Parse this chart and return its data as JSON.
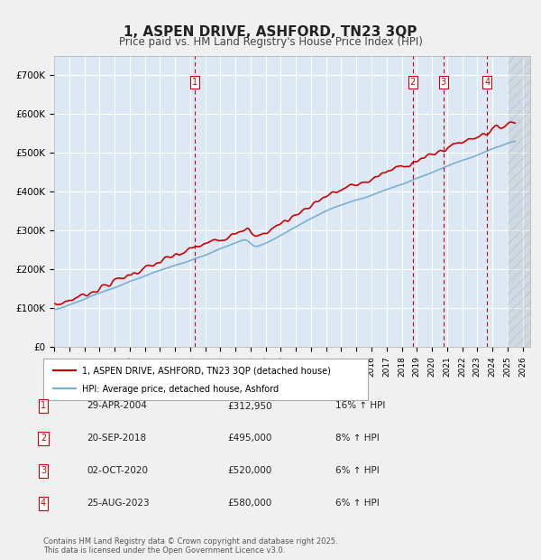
{
  "title": "1, ASPEN DRIVE, ASHFORD, TN23 3QP",
  "subtitle": "Price paid vs. HM Land Registry's House Price Index (HPI)",
  "ylabel_ticks": [
    "£0",
    "£100K",
    "£200K",
    "£300K",
    "£400K",
    "£500K",
    "£600K",
    "£700K"
  ],
  "ytick_vals": [
    0,
    100000,
    200000,
    300000,
    400000,
    500000,
    600000,
    700000
  ],
  "ylim": [
    0,
    750000
  ],
  "xlim_start": 1995.0,
  "xlim_end": 2026.5,
  "background_color": "#dce9f5",
  "plot_bg_color": "#dce9f5",
  "grid_color": "#ffffff",
  "hpi_line_color": "#7bafd4",
  "price_line_color": "#cc0000",
  "transaction_line_color": "#cc0000",
  "transactions": [
    {
      "label": "1",
      "date": "29-APR-2004",
      "year": 2004.33,
      "price": 312950,
      "pct": "16%",
      "dir": "↑"
    },
    {
      "label": "2",
      "date": "20-SEP-2018",
      "year": 2018.72,
      "price": 495000,
      "pct": "8%",
      "dir": "↑"
    },
    {
      "label": "3",
      "date": "02-OCT-2020",
      "year": 2020.75,
      "price": 520000,
      "pct": "6%",
      "dir": "↑"
    },
    {
      "label": "4",
      "date": "25-AUG-2023",
      "year": 2023.65,
      "price": 580000,
      "pct": "6%",
      "dir": "↑"
    }
  ],
  "legend_label_price": "1, ASPEN DRIVE, ASHFORD, TN23 3QP (detached house)",
  "legend_label_hpi": "HPI: Average price, detached house, Ashford",
  "footer_line1": "Contains HM Land Registry data © Crown copyright and database right 2025.",
  "footer_line2": "This data is licensed under the Open Government Licence v3.0.",
  "hatch_color": "#c8c8c8",
  "hatch_start": 2025.0
}
